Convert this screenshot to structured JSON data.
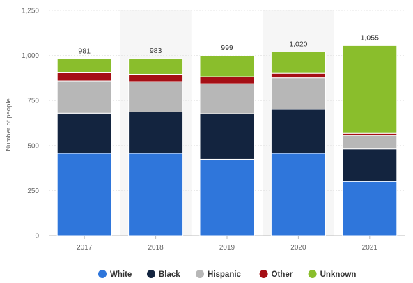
{
  "chart_data": {
    "type": "bar",
    "stacked": true,
    "categories": [
      "2017",
      "2018",
      "2019",
      "2020",
      "2021"
    ],
    "series": [
      {
        "name": "White",
        "values": [
          457,
          457,
          424,
          457,
          301
        ]
      },
      {
        "name": "Black",
        "values": [
          223,
          230,
          253,
          244,
          180
        ]
      },
      {
        "name": "Hispanic",
        "values": [
          179,
          168,
          166,
          175,
          76
        ]
      },
      {
        "name": "Other",
        "values": [
          45,
          41,
          39,
          25,
          11
        ]
      },
      {
        "name": "Unknown",
        "values": [
          77,
          87,
          117,
          119,
          487
        ]
      }
    ],
    "totals": [
      "981",
      "983",
      "999",
      "1,020",
      "1,055"
    ],
    "title": "",
    "xlabel": "",
    "ylabel": "Number of people",
    "ylim": [
      0,
      1250
    ],
    "yticks": [
      0,
      250,
      500,
      750,
      1000,
      1250
    ],
    "ytick_labels": [
      "0",
      "250",
      "500",
      "750",
      "1,000",
      "1,250"
    ],
    "grid": true,
    "legend_position": "bottom",
    "colors": {
      "White": "#2f76db",
      "Black": "#13243f",
      "Hispanic": "#b7b7b7",
      "Other": "#a50f15",
      "Unknown": "#8abe2c"
    }
  }
}
